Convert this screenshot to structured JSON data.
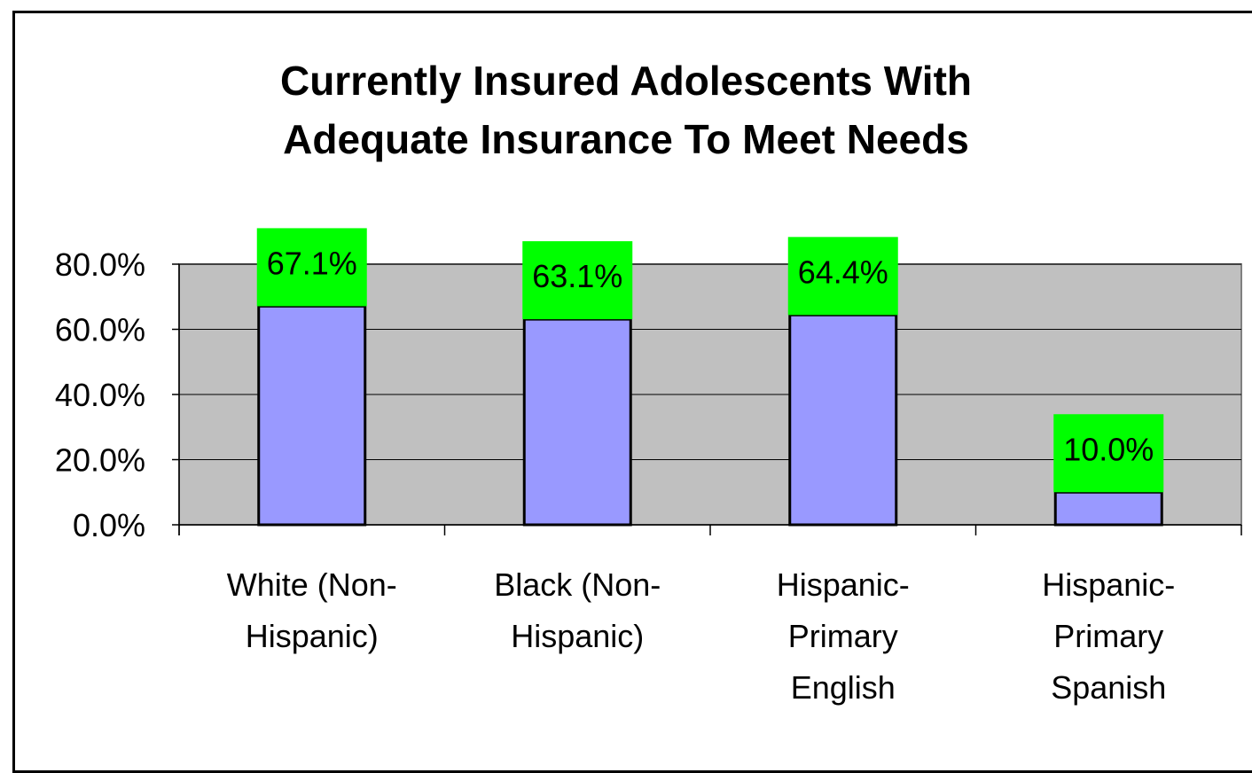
{
  "chart_data": {
    "type": "bar",
    "title_lines": [
      "Currently Insured Adolescents With",
      "Adequate Insurance To Meet Needs"
    ],
    "categories": [
      [
        "White (Non-",
        "Hispanic)"
      ],
      [
        "Black (Non-",
        "Hispanic)"
      ],
      [
        "Hispanic-",
        "Primary",
        "English"
      ],
      [
        "Hispanic-",
        "Primary",
        "Spanish"
      ]
    ],
    "values": [
      67.1,
      63.1,
      64.4,
      10.0
    ],
    "data_labels": [
      "67.1%",
      "63.1%",
      "64.4%",
      "10.0%"
    ],
    "ylim": [
      0,
      80
    ],
    "yticks": [
      0,
      20,
      40,
      60,
      80
    ],
    "ytick_labels": [
      "0.0%",
      "20.0%",
      "40.0%",
      "60.0%",
      "80.0%"
    ],
    "xlabel": "",
    "ylabel": "",
    "grid": true,
    "legend": "none",
    "colors": {
      "plot_background": "#c0c0c0",
      "bar_fill": "#9999ff",
      "label_background": "#00ff00",
      "gridline": "#000000"
    }
  }
}
